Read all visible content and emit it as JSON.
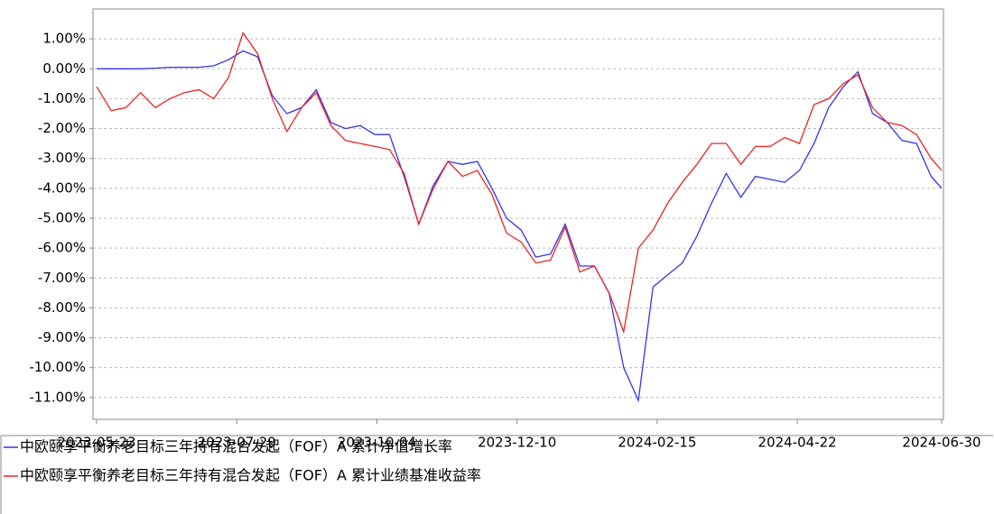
{
  "chart_data": {
    "type": "line",
    "x": [
      "2023-05-23",
      "2023-05-30",
      "2023-06-06",
      "2023-06-13",
      "2023-06-20",
      "2023-06-27",
      "2023-07-04",
      "2023-07-11",
      "2023-07-18",
      "2023-07-25",
      "2023-08-01",
      "2023-08-08",
      "2023-08-15",
      "2023-08-22",
      "2023-08-29",
      "2023-09-05",
      "2023-09-12",
      "2023-09-19",
      "2023-09-26",
      "2023-10-03",
      "2023-10-10",
      "2023-10-17",
      "2023-10-24",
      "2023-10-31",
      "2023-11-07",
      "2023-11-14",
      "2023-11-21",
      "2023-11-28",
      "2023-12-05",
      "2023-12-12",
      "2023-12-19",
      "2023-12-26",
      "2024-01-02",
      "2024-01-09",
      "2024-01-16",
      "2024-01-23",
      "2024-01-30",
      "2024-02-06",
      "2024-02-13",
      "2024-02-20",
      "2024-02-27",
      "2024-03-05",
      "2024-03-12",
      "2024-03-19",
      "2024-03-26",
      "2024-04-02",
      "2024-04-09",
      "2024-04-16",
      "2024-04-23",
      "2024-04-30",
      "2024-05-07",
      "2024-05-14",
      "2024-05-21",
      "2024-05-28",
      "2024-06-04",
      "2024-06-11",
      "2024-06-18",
      "2024-06-25",
      "2024-06-30"
    ],
    "series": [
      {
        "name": "中欧颐享平衡养老目标三年持有混合发起（FOF）A 累计净值增长率",
        "color": "#3333ee",
        "values": [
          0.0,
          0.0,
          0.0,
          0.0,
          0.02,
          0.05,
          0.05,
          0.05,
          0.1,
          0.3,
          0.6,
          0.4,
          -0.9,
          -1.5,
          -1.3,
          -0.7,
          -1.8,
          -2.0,
          -1.9,
          -2.2,
          -2.2,
          -3.6,
          -5.2,
          -3.9,
          -3.1,
          -3.2,
          -3.1,
          -4.0,
          -5.0,
          -5.4,
          -6.3,
          -6.2,
          -5.2,
          -6.6,
          -6.6,
          -7.5,
          -10.0,
          -11.1,
          -7.3,
          -6.9,
          -6.5,
          -5.6,
          -4.5,
          -3.5,
          -4.3,
          -3.6,
          -3.7,
          -3.8,
          -3.4,
          -2.5,
          -1.3,
          -0.6,
          -0.1,
          -1.5,
          -1.8,
          -2.4,
          -2.5,
          -3.6,
          -4.0
        ]
      },
      {
        "name": "中欧颐享平衡养老目标三年持有混合发起（FOF）A 累计业绩基准收益率",
        "color": "#ee2222",
        "values": [
          -0.6,
          -1.4,
          -1.3,
          -0.8,
          -1.3,
          -1.0,
          -0.8,
          -0.7,
          -1.0,
          -0.3,
          1.2,
          0.5,
          -1.0,
          -2.1,
          -1.3,
          -0.8,
          -1.9,
          -2.4,
          -2.5,
          -2.6,
          -2.7,
          -3.5,
          -5.2,
          -4.0,
          -3.1,
          -3.6,
          -3.4,
          -4.2,
          -5.5,
          -5.8,
          -6.5,
          -6.4,
          -5.3,
          -6.8,
          -6.6,
          -7.5,
          -8.8,
          -6.0,
          -5.4,
          -4.5,
          -3.8,
          -3.2,
          -2.5,
          -2.5,
          -3.2,
          -2.6,
          -2.6,
          -2.3,
          -2.5,
          -1.2,
          -1.0,
          -0.5,
          -0.2,
          -1.3,
          -1.8,
          -1.9,
          -2.2,
          -3.0,
          -3.4
        ]
      }
    ],
    "xlim": [
      "2023-05-23",
      "2024-06-30"
    ],
    "xticks": [
      "2023-05-23",
      "2023-07-29",
      "2023-10-04",
      "2023-12-10",
      "2024-02-15",
      "2024-04-22",
      "2024-06-30"
    ],
    "ylim": [
      -11.73,
      2.0
    ],
    "yticks": [
      {
        "value": 1,
        "label": "1.00%"
      },
      {
        "value": 0,
        "label": "0.00%"
      },
      {
        "value": -1,
        "label": "-1.00%"
      },
      {
        "value": -2,
        "label": "-2.00%"
      },
      {
        "value": -3,
        "label": "-3.00%"
      },
      {
        "value": -4,
        "label": "-4.00%"
      },
      {
        "value": -5,
        "label": "-5.00%"
      },
      {
        "value": -6,
        "label": "-6.00%"
      },
      {
        "value": -7,
        "label": "-7.00%"
      },
      {
        "value": -8,
        "label": "-8.00%"
      },
      {
        "value": -9,
        "label": "-9.00%"
      },
      {
        "value": -10,
        "label": "-10.00%"
      },
      {
        "value": -11,
        "label": "-11.00%"
      }
    ],
    "grid": true
  }
}
